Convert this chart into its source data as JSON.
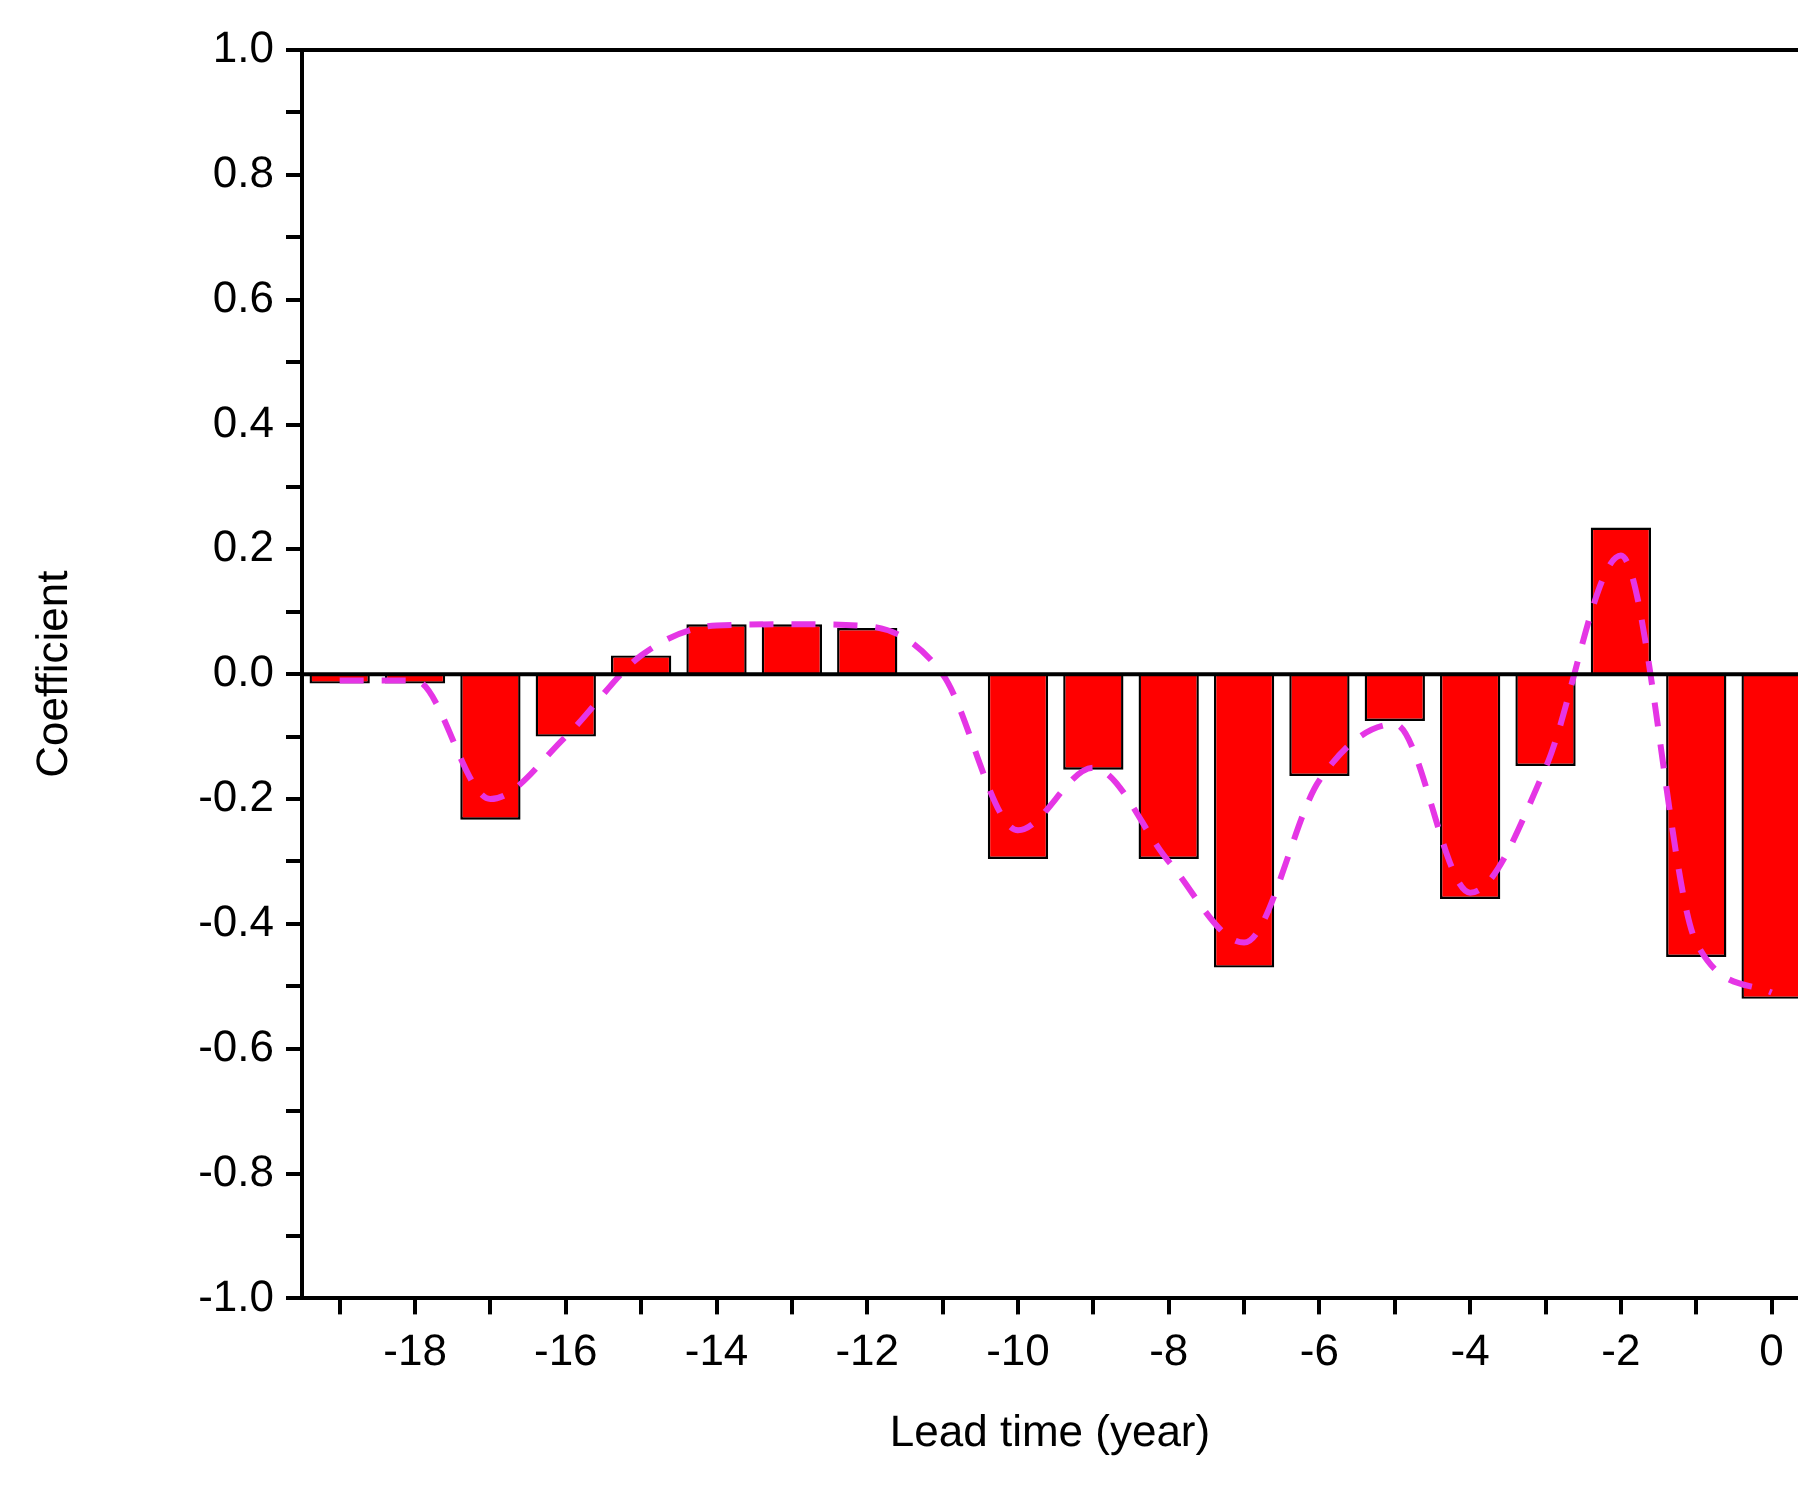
{
  "chart_data": {
    "type": "bar",
    "xlabel": "Lead time (year)",
    "ylabel": "Coefficient",
    "x": [
      -19,
      -18,
      -17,
      -16,
      -15,
      -14,
      -13,
      -12,
      -11,
      -10,
      -9,
      -8,
      -7,
      -6,
      -5,
      -4,
      -3,
      -2,
      -1,
      0
    ],
    "series": [
      {
        "color": "#ff0000",
        "values": [
          -0.015,
          -0.015,
          -0.233,
          -0.1,
          0.03,
          0.08,
          0.08,
          0.074,
          0,
          -0.296,
          -0.153,
          -0.296,
          -0.47,
          -0.163,
          -0.075,
          -0.36,
          -0.147,
          0.235,
          -0.453,
          -0.52
        ]
      },
      {
        "type": "line",
        "color": "#e535e5",
        "line_style": "dashed",
        "marker": "none",
        "values": [
          -0.01,
          -0.01,
          -0.2,
          -0.1,
          0.03,
          0.078,
          0.08,
          0.077,
          0,
          -0.25,
          -0.15,
          -0.3,
          -0.43,
          -0.17,
          -0.08,
          -0.35,
          -0.15,
          0.19,
          -0.43,
          -0.51
        ]
      }
    ],
    "xlim": [
      -19.5,
      0.35
    ],
    "xticks": [
      {
        "value": -19,
        "label": null
      },
      -18,
      {
        "value": -17,
        "label": null
      },
      -16,
      {
        "value": -15,
        "label": null
      },
      -14,
      {
        "value": -13,
        "label": null
      },
      -12,
      {
        "value": -11,
        "label": null
      },
      -10,
      {
        "value": -9,
        "label": null
      },
      -8,
      {
        "value": -7,
        "label": null
      },
      -6,
      {
        "value": -5,
        "label": null
      },
      -4,
      {
        "value": -3,
        "label": null
      },
      -2,
      {
        "value": -1,
        "label": null
      },
      0
    ],
    "ylim": [
      -1,
      1
    ],
    "yticks": [
      {
        "value": -1,
        "label": "-1.0"
      },
      {
        "value": -0.9,
        "label": null
      },
      {
        "value": -0.8,
        "label": "-0.8"
      },
      {
        "value": -0.7,
        "label": null
      },
      {
        "value": -0.6,
        "label": "-0.6"
      },
      {
        "value": -0.5,
        "label": null
      },
      {
        "value": -0.4,
        "label": "-0.4"
      },
      {
        "value": -0.3,
        "label": null
      },
      {
        "value": -0.2,
        "label": "-0.2"
      },
      {
        "value": -0.1,
        "label": null
      },
      {
        "value": 0,
        "label": "0.0"
      },
      {
        "value": 0.1,
        "label": null
      },
      {
        "value": 0.2,
        "label": "0.2"
      },
      {
        "value": 0.3,
        "label": null
      },
      {
        "value": 0.4,
        "label": "0.4"
      },
      {
        "value": 0.5,
        "label": null
      },
      {
        "value": 0.6,
        "label": "0.6"
      },
      {
        "value": 0.7,
        "label": null
      },
      {
        "value": 0.8,
        "label": "0.8"
      },
      {
        "value": 0.9,
        "label": null
      },
      {
        "value": 1,
        "label": "1.0"
      }
    ],
    "ref_lines": [
      {
        "axis": "y",
        "value": 0,
        "color": "#000000"
      }
    ],
    "legend": false
  }
}
